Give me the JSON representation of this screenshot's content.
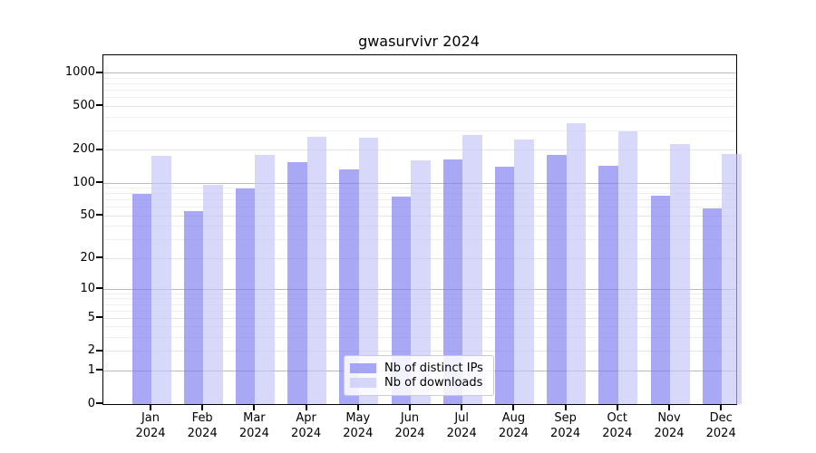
{
  "title": "gwasurvivr 2024",
  "chart_data": {
    "type": "bar",
    "title": "gwasurvivr 2024",
    "categories": [
      "Jan",
      "Feb",
      "Mar",
      "Apr",
      "May",
      "Jun",
      "Jul",
      "Aug",
      "Sep",
      "Oct",
      "Nov",
      "Dec"
    ],
    "year_label": "2024",
    "series": [
      {
        "name": "Nb of distinct IPs",
        "color": "rgba(122,122,238,0.65)",
        "values": [
          80,
          55,
          90,
          154,
          133,
          75,
          165,
          142,
          180,
          144,
          77,
          58
        ]
      },
      {
        "name": "Nb of downloads",
        "color": "rgba(195,195,247,0.65)",
        "values": [
          178,
          96,
          181,
          266,
          258,
          160,
          275,
          250,
          350,
          295,
          227,
          185
        ]
      }
    ],
    "yscale": "log1p",
    "ylim": [
      0,
      1450
    ],
    "yticks": [
      0,
      1,
      2,
      5,
      10,
      20,
      50,
      100,
      200,
      500,
      1000
    ],
    "minor_yticks": [
      3,
      4,
      6,
      7,
      8,
      9,
      30,
      40,
      60,
      70,
      80,
      90,
      300,
      400,
      600,
      700,
      800,
      900
    ],
    "major_gridline_values": [
      1,
      10,
      100,
      1000
    ],
    "grid": true,
    "legend_position": "bottom-center",
    "xlabel": "",
    "ylabel": "",
    "colors": {
      "background": "#ffffff",
      "axis": "#000000",
      "grid_major": "#bbbbbb",
      "grid_minor": "#efefef",
      "legend_border": "#cccccc"
    }
  }
}
